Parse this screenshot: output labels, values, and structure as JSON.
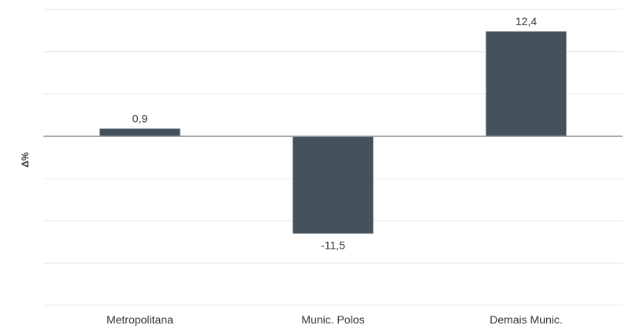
{
  "chart_data": {
    "type": "bar",
    "categories": [
      "Metropolitana",
      "Munic. Polos",
      "Demais Munic."
    ],
    "values": [
      0.9,
      -11.5,
      12.4
    ],
    "value_labels": [
      "0,9",
      "-11,5",
      "12,4"
    ],
    "title": "",
    "xlabel": "",
    "ylabel": "Δ%",
    "ylim": [
      -20,
      15
    ],
    "grid": true,
    "legend": "none",
    "colors": {
      "bar": "#44525c",
      "zero_line": "#9a9a9a",
      "grid": "#e6e6e6",
      "text": "#333333"
    }
  }
}
